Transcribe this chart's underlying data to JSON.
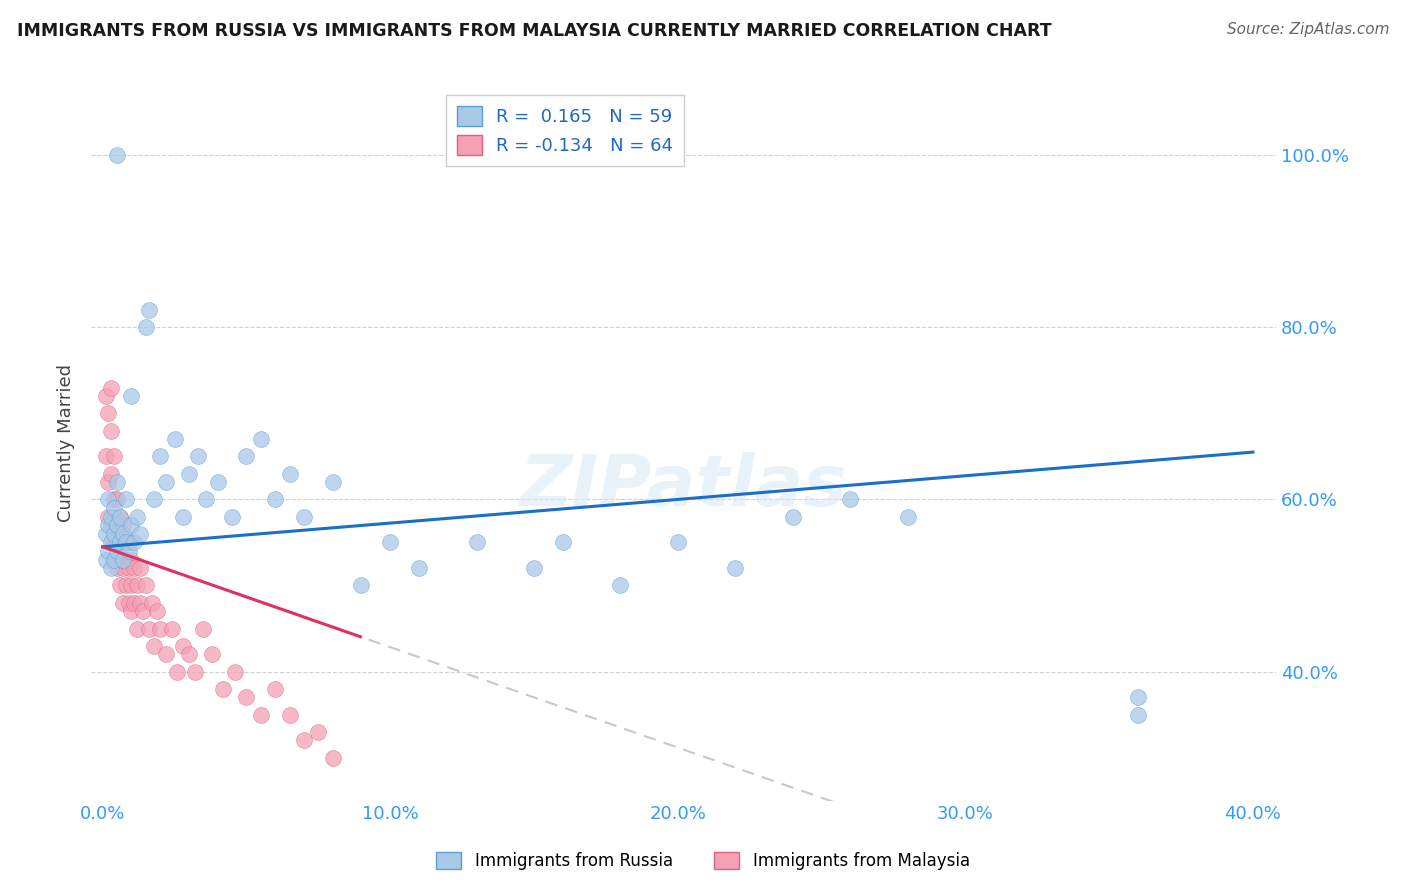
{
  "title": "IMMIGRANTS FROM RUSSIA VS IMMIGRANTS FROM MALAYSIA CURRENTLY MARRIED CORRELATION CHART",
  "source": "Source: ZipAtlas.com",
  "ylabel": "Currently Married",
  "R_russia": 0.165,
  "N_russia": 59,
  "R_malaysia": -0.134,
  "N_malaysia": 64,
  "color_russia": "#A8C8E8",
  "color_malaysia": "#F4A0B5",
  "color_russia_edge": "#5A9FD4",
  "color_malaysia_edge": "#E06080",
  "line_color_russia": "#1B6FC8",
  "line_color_malaysia": "#E03060",
  "line_color_dashed": "#C8C8C8",
  "watermark": "ZIPatlas",
  "background_color": "#FFFFFF",
  "russia_x": [
    0.001,
    0.001,
    0.002,
    0.002,
    0.002,
    0.003,
    0.003,
    0.003,
    0.004,
    0.004,
    0.004,
    0.005,
    0.005,
    0.005,
    0.006,
    0.006,
    0.007,
    0.007,
    0.008,
    0.008,
    0.009,
    0.01,
    0.01,
    0.011,
    0.012,
    0.013,
    0.015,
    0.016,
    0.018,
    0.02,
    0.022,
    0.025,
    0.028,
    0.03,
    0.033,
    0.036,
    0.04,
    0.045,
    0.05,
    0.055,
    0.06,
    0.065,
    0.07,
    0.08,
    0.09,
    0.1,
    0.11,
    0.13,
    0.15,
    0.16,
    0.18,
    0.2,
    0.22,
    0.24,
    0.26,
    0.28,
    0.005,
    0.36,
    0.36
  ],
  "russia_y": [
    0.53,
    0.56,
    0.54,
    0.57,
    0.6,
    0.52,
    0.55,
    0.58,
    0.53,
    0.56,
    0.59,
    0.54,
    0.57,
    0.62,
    0.55,
    0.58,
    0.53,
    0.56,
    0.55,
    0.6,
    0.54,
    0.57,
    0.72,
    0.55,
    0.58,
    0.56,
    0.8,
    0.82,
    0.6,
    0.65,
    0.62,
    0.67,
    0.58,
    0.63,
    0.65,
    0.6,
    0.62,
    0.58,
    0.65,
    0.67,
    0.6,
    0.63,
    0.58,
    0.62,
    0.5,
    0.55,
    0.52,
    0.55,
    0.52,
    0.55,
    0.5,
    0.55,
    0.52,
    0.58,
    0.6,
    0.58,
    1.0,
    0.37,
    0.35
  ],
  "malaysia_x": [
    0.001,
    0.001,
    0.002,
    0.002,
    0.002,
    0.003,
    0.003,
    0.003,
    0.003,
    0.004,
    0.004,
    0.004,
    0.004,
    0.005,
    0.005,
    0.005,
    0.005,
    0.006,
    0.006,
    0.006,
    0.006,
    0.007,
    0.007,
    0.007,
    0.007,
    0.008,
    0.008,
    0.008,
    0.009,
    0.009,
    0.009,
    0.01,
    0.01,
    0.01,
    0.011,
    0.011,
    0.012,
    0.012,
    0.013,
    0.013,
    0.014,
    0.015,
    0.016,
    0.017,
    0.018,
    0.019,
    0.02,
    0.022,
    0.024,
    0.026,
    0.028,
    0.03,
    0.032,
    0.035,
    0.038,
    0.042,
    0.046,
    0.05,
    0.055,
    0.06,
    0.065,
    0.07,
    0.075,
    0.08
  ],
  "malaysia_y": [
    0.72,
    0.65,
    0.7,
    0.62,
    0.58,
    0.68,
    0.63,
    0.57,
    0.73,
    0.6,
    0.55,
    0.65,
    0.58,
    0.55,
    0.6,
    0.52,
    0.57,
    0.55,
    0.53,
    0.58,
    0.5,
    0.55,
    0.52,
    0.57,
    0.48,
    0.53,
    0.5,
    0.55,
    0.52,
    0.48,
    0.55,
    0.5,
    0.53,
    0.47,
    0.52,
    0.48,
    0.5,
    0.45,
    0.48,
    0.52,
    0.47,
    0.5,
    0.45,
    0.48,
    0.43,
    0.47,
    0.45,
    0.42,
    0.45,
    0.4,
    0.43,
    0.42,
    0.4,
    0.45,
    0.42,
    0.38,
    0.4,
    0.37,
    0.35,
    0.38,
    0.35,
    0.32,
    0.33,
    0.3
  ],
  "xtick_values": [
    0.0,
    0.1,
    0.2,
    0.3,
    0.4
  ],
  "xtick_labels": [
    "0.0%",
    "10.0%",
    "20.0%",
    "30.0%",
    "40.0%"
  ],
  "ytick_values": [
    0.4,
    0.6,
    0.8,
    1.0
  ],
  "ytick_labels": [
    "40.0%",
    "60.0%",
    "80.0%",
    "100.0%"
  ],
  "xlim": [
    -0.004,
    0.408
  ],
  "ylim": [
    0.25,
    1.08
  ]
}
